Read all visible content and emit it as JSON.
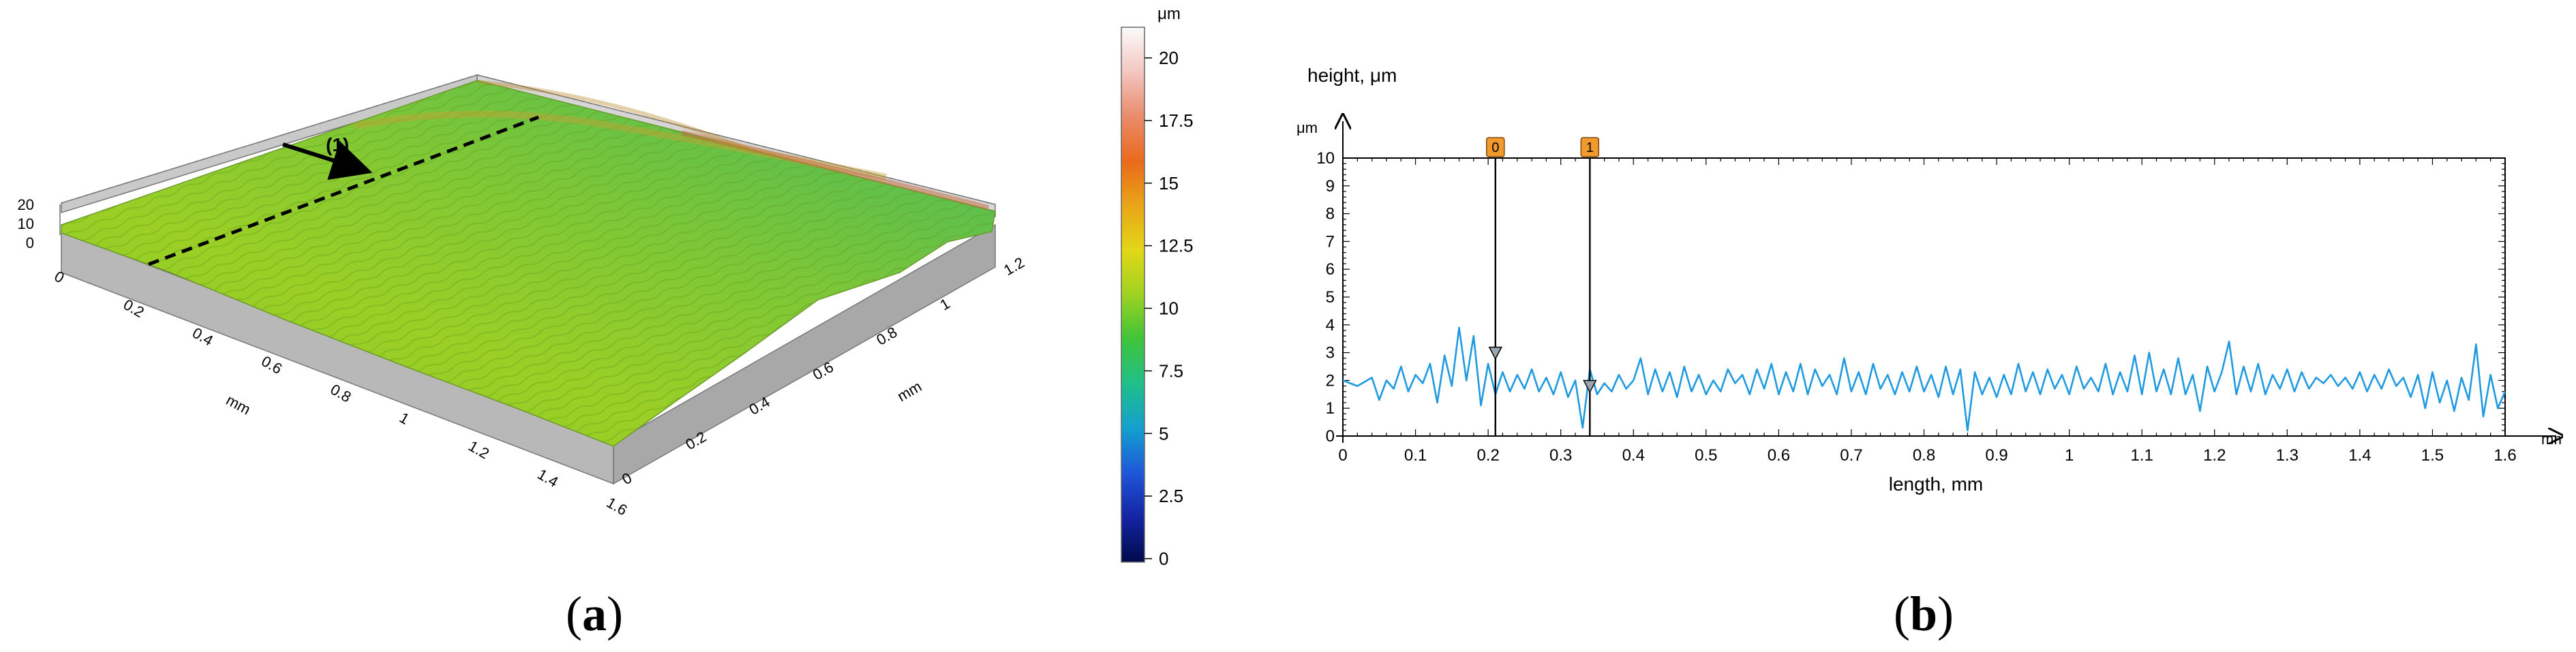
{
  "panels": {
    "a": {
      "open": "(",
      "letter": "a",
      "close": ")"
    },
    "b": {
      "open": "(",
      "letter": "b",
      "close": ")"
    }
  },
  "surface_3d": {
    "x_axis_label": "mm",
    "y_axis_label": "mm",
    "z_ticks": [
      "20",
      "10",
      "0"
    ],
    "x_ticks": [
      "0",
      "0.2",
      "0.4",
      "0.6",
      "0.8",
      "1",
      "1.2",
      "1.4",
      "1.6"
    ],
    "y_ticks": [
      "0",
      "0.2",
      "0.4",
      "0.6",
      "0.8",
      "1",
      "1.2"
    ],
    "profile_line_label": "(1)",
    "colorbar": {
      "unit": "μm",
      "ticks": [
        "20",
        "17.5",
        "15",
        "12.5",
        "10",
        "7.5",
        "5",
        "2.5",
        "0"
      ],
      "colors": [
        "#fbfbfb",
        "#f4c6c0",
        "#e98b6c",
        "#ea6a1c",
        "#e9a517",
        "#e2d718",
        "#9ed321",
        "#3fc43a",
        "#1fbf8a",
        "#14a0cf",
        "#1e57d8",
        "#1424a3",
        "#000a4a"
      ]
    }
  },
  "chart_data": {
    "type": "line",
    "title": "",
    "ylabel": "height, μm",
    "y_unit": "μm",
    "xlabel": "length, mm",
    "x_unit": "mm",
    "xlim": [
      0,
      1.6
    ],
    "ylim": [
      0,
      10
    ],
    "x_ticks": [
      "0",
      "0.1",
      "0.2",
      "0.3",
      "0.4",
      "0.5",
      "0.6",
      "0.7",
      "0.8",
      "0.9",
      "1",
      "1.1",
      "1.2",
      "1.3",
      "1.4",
      "1.5",
      "1.6"
    ],
    "y_ticks": [
      "0",
      "1",
      "2",
      "3",
      "4",
      "5",
      "6",
      "7",
      "8",
      "9",
      "10"
    ],
    "line_color": "#1f9ae0",
    "markers": [
      {
        "label": "0",
        "x": 0.21,
        "y": 3.0
      },
      {
        "label": "1",
        "x": 0.34,
        "y": 1.8
      }
    ],
    "series": [
      {
        "values": [
          [
            0.0,
            2.0
          ],
          [
            0.02,
            1.8
          ],
          [
            0.04,
            2.1
          ],
          [
            0.05,
            1.3
          ],
          [
            0.06,
            2.0
          ],
          [
            0.07,
            1.7
          ],
          [
            0.08,
            2.5
          ],
          [
            0.09,
            1.6
          ],
          [
            0.1,
            2.2
          ],
          [
            0.11,
            1.9
          ],
          [
            0.12,
            2.6
          ],
          [
            0.13,
            1.2
          ],
          [
            0.14,
            2.9
          ],
          [
            0.15,
            1.8
          ],
          [
            0.16,
            3.9
          ],
          [
            0.17,
            2.0
          ],
          [
            0.18,
            3.6
          ],
          [
            0.19,
            1.1
          ],
          [
            0.2,
            2.6
          ],
          [
            0.21,
            1.5
          ],
          [
            0.22,
            2.3
          ],
          [
            0.23,
            1.6
          ],
          [
            0.24,
            2.2
          ],
          [
            0.25,
            1.7
          ],
          [
            0.26,
            2.4
          ],
          [
            0.27,
            1.6
          ],
          [
            0.28,
            2.1
          ],
          [
            0.29,
            1.5
          ],
          [
            0.3,
            2.3
          ],
          [
            0.31,
            1.4
          ],
          [
            0.32,
            2.0
          ],
          [
            0.33,
            0.3
          ],
          [
            0.34,
            2.4
          ],
          [
            0.35,
            1.5
          ],
          [
            0.36,
            1.9
          ],
          [
            0.37,
            1.6
          ],
          [
            0.38,
            2.2
          ],
          [
            0.39,
            1.7
          ],
          [
            0.4,
            2.0
          ],
          [
            0.41,
            2.8
          ],
          [
            0.42,
            1.5
          ],
          [
            0.43,
            2.4
          ],
          [
            0.44,
            1.6
          ],
          [
            0.45,
            2.3
          ],
          [
            0.46,
            1.4
          ],
          [
            0.47,
            2.5
          ],
          [
            0.48,
            1.6
          ],
          [
            0.49,
            2.2
          ],
          [
            0.5,
            1.5
          ],
          [
            0.51,
            2.0
          ],
          [
            0.52,
            1.6
          ],
          [
            0.53,
            2.4
          ],
          [
            0.54,
            1.9
          ],
          [
            0.55,
            2.2
          ],
          [
            0.56,
            1.5
          ],
          [
            0.57,
            2.4
          ],
          [
            0.58,
            1.7
          ],
          [
            0.59,
            2.6
          ],
          [
            0.6,
            1.5
          ],
          [
            0.61,
            2.3
          ],
          [
            0.62,
            1.6
          ],
          [
            0.63,
            2.6
          ],
          [
            0.64,
            1.5
          ],
          [
            0.65,
            2.4
          ],
          [
            0.66,
            1.8
          ],
          [
            0.67,
            2.2
          ],
          [
            0.68,
            1.5
          ],
          [
            0.69,
            2.8
          ],
          [
            0.7,
            1.6
          ],
          [
            0.71,
            2.3
          ],
          [
            0.72,
            1.5
          ],
          [
            0.73,
            2.6
          ],
          [
            0.74,
            1.7
          ],
          [
            0.75,
            2.2
          ],
          [
            0.76,
            1.5
          ],
          [
            0.77,
            2.3
          ],
          [
            0.78,
            1.6
          ],
          [
            0.79,
            2.5
          ],
          [
            0.8,
            1.6
          ],
          [
            0.81,
            2.2
          ],
          [
            0.82,
            1.4
          ],
          [
            0.83,
            2.5
          ],
          [
            0.84,
            1.5
          ],
          [
            0.85,
            2.4
          ],
          [
            0.86,
            0.2
          ],
          [
            0.87,
            2.3
          ],
          [
            0.88,
            1.5
          ],
          [
            0.89,
            2.1
          ],
          [
            0.9,
            1.4
          ],
          [
            0.91,
            2.2
          ],
          [
            0.92,
            1.5
          ],
          [
            0.93,
            2.6
          ],
          [
            0.94,
            1.6
          ],
          [
            0.95,
            2.3
          ],
          [
            0.96,
            1.5
          ],
          [
            0.97,
            2.4
          ],
          [
            0.98,
            1.7
          ],
          [
            0.99,
            2.2
          ],
          [
            1.0,
            1.5
          ],
          [
            1.01,
            2.5
          ],
          [
            1.02,
            1.7
          ],
          [
            1.03,
            2.1
          ],
          [
            1.04,
            1.6
          ],
          [
            1.05,
            2.6
          ],
          [
            1.06,
            1.5
          ],
          [
            1.07,
            2.3
          ],
          [
            1.08,
            1.6
          ],
          [
            1.09,
            2.9
          ],
          [
            1.1,
            1.5
          ],
          [
            1.11,
            3.0
          ],
          [
            1.12,
            1.6
          ],
          [
            1.13,
            2.4
          ],
          [
            1.14,
            1.5
          ],
          [
            1.15,
            2.8
          ],
          [
            1.16,
            1.5
          ],
          [
            1.17,
            2.2
          ],
          [
            1.18,
            0.9
          ],
          [
            1.19,
            2.5
          ],
          [
            1.2,
            1.6
          ],
          [
            1.21,
            2.3
          ],
          [
            1.22,
            3.4
          ],
          [
            1.23,
            1.5
          ],
          [
            1.24,
            2.5
          ],
          [
            1.25,
            1.6
          ],
          [
            1.26,
            2.6
          ],
          [
            1.27,
            1.5
          ],
          [
            1.28,
            2.2
          ],
          [
            1.29,
            1.7
          ],
          [
            1.3,
            2.4
          ],
          [
            1.31,
            1.6
          ],
          [
            1.32,
            2.3
          ],
          [
            1.33,
            1.7
          ],
          [
            1.34,
            2.1
          ],
          [
            1.35,
            1.9
          ],
          [
            1.36,
            2.2
          ],
          [
            1.37,
            1.8
          ],
          [
            1.38,
            2.1
          ],
          [
            1.39,
            1.7
          ],
          [
            1.4,
            2.3
          ],
          [
            1.41,
            1.6
          ],
          [
            1.42,
            2.2
          ],
          [
            1.43,
            1.7
          ],
          [
            1.44,
            2.4
          ],
          [
            1.45,
            1.8
          ],
          [
            1.46,
            2.1
          ],
          [
            1.47,
            1.4
          ],
          [
            1.48,
            2.2
          ],
          [
            1.49,
            1.0
          ],
          [
            1.5,
            2.3
          ],
          [
            1.51,
            1.2
          ],
          [
            1.52,
            2.0
          ],
          [
            1.53,
            0.9
          ],
          [
            1.54,
            2.1
          ],
          [
            1.55,
            1.3
          ],
          [
            1.56,
            3.3
          ],
          [
            1.57,
            0.7
          ],
          [
            1.58,
            2.2
          ],
          [
            1.59,
            1.0
          ],
          [
            1.6,
            1.6
          ]
        ]
      }
    ]
  }
}
